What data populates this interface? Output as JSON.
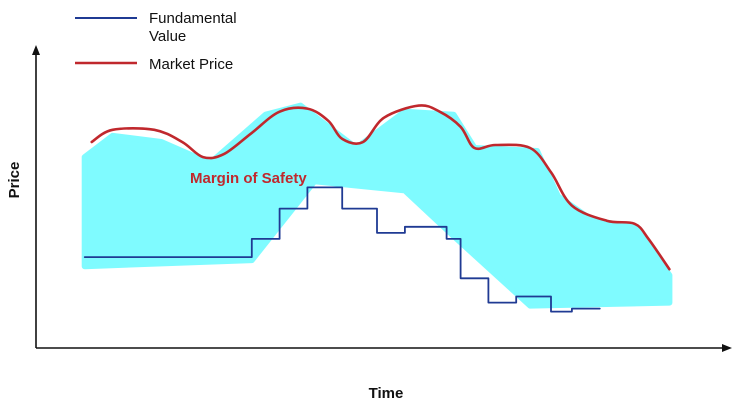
{
  "chart_data": {
    "type": "line",
    "xlabel": "Time",
    "ylabel": "Price",
    "annotation": "Margin of Safety",
    "legend": {
      "placement": "top-left",
      "items": [
        {
          "key": "fundamental",
          "label_lines": [
            "Fundamental",
            "Value"
          ],
          "color": "#1f3a93"
        },
        {
          "key": "market",
          "label_lines": [
            "Market Price"
          ],
          "color": "#c0282d"
        }
      ]
    },
    "colors": {
      "margin_fill": "#7ffbff",
      "axis": "#111111",
      "annotation": "#c0282d"
    },
    "series": [
      {
        "name": "Fundamental Value",
        "style": "step",
        "points": [
          [
            0.07,
            0.3
          ],
          [
            0.31,
            0.3
          ],
          [
            0.31,
            0.36
          ],
          [
            0.35,
            0.36
          ],
          [
            0.35,
            0.46
          ],
          [
            0.39,
            0.46
          ],
          [
            0.39,
            0.53
          ],
          [
            0.44,
            0.53
          ],
          [
            0.44,
            0.46
          ],
          [
            0.49,
            0.46
          ],
          [
            0.49,
            0.38
          ],
          [
            0.53,
            0.38
          ],
          [
            0.53,
            0.4
          ],
          [
            0.59,
            0.4
          ],
          [
            0.59,
            0.36
          ],
          [
            0.61,
            0.36
          ],
          [
            0.61,
            0.23
          ],
          [
            0.65,
            0.23
          ],
          [
            0.65,
            0.15
          ],
          [
            0.69,
            0.15
          ],
          [
            0.69,
            0.17
          ],
          [
            0.74,
            0.17
          ],
          [
            0.74,
            0.12
          ],
          [
            0.77,
            0.12
          ],
          [
            0.77,
            0.13
          ],
          [
            0.81,
            0.13
          ]
        ]
      },
      {
        "name": "Market Price",
        "style": "smooth",
        "points": [
          [
            0.08,
            0.68
          ],
          [
            0.11,
            0.72
          ],
          [
            0.17,
            0.72
          ],
          [
            0.21,
            0.68
          ],
          [
            0.24,
            0.63
          ],
          [
            0.27,
            0.64
          ],
          [
            0.31,
            0.71
          ],
          [
            0.35,
            0.78
          ],
          [
            0.39,
            0.79
          ],
          [
            0.42,
            0.75
          ],
          [
            0.44,
            0.69
          ],
          [
            0.47,
            0.68
          ],
          [
            0.5,
            0.76
          ],
          [
            0.55,
            0.8
          ],
          [
            0.58,
            0.78
          ],
          [
            0.61,
            0.73
          ],
          [
            0.63,
            0.66
          ],
          [
            0.66,
            0.67
          ],
          [
            0.71,
            0.66
          ],
          [
            0.74,
            0.58
          ],
          [
            0.77,
            0.47
          ],
          [
            0.82,
            0.42
          ],
          [
            0.86,
            0.41
          ],
          [
            0.88,
            0.36
          ],
          [
            0.91,
            0.26
          ]
        ]
      }
    ],
    "margin_region": [
      [
        0.07,
        0.27
      ],
      [
        0.31,
        0.29
      ],
      [
        0.4,
        0.55
      ],
      [
        0.53,
        0.52
      ],
      [
        0.6,
        0.37
      ],
      [
        0.71,
        0.14
      ],
      [
        0.91,
        0.15
      ],
      [
        0.91,
        0.24
      ],
      [
        0.86,
        0.4
      ],
      [
        0.8,
        0.42
      ],
      [
        0.75,
        0.5
      ],
      [
        0.72,
        0.65
      ],
      [
        0.63,
        0.66
      ],
      [
        0.6,
        0.77
      ],
      [
        0.53,
        0.78
      ],
      [
        0.46,
        0.66
      ],
      [
        0.38,
        0.8
      ],
      [
        0.33,
        0.77
      ],
      [
        0.25,
        0.61
      ],
      [
        0.18,
        0.68
      ],
      [
        0.11,
        0.7
      ],
      [
        0.07,
        0.63
      ]
    ],
    "xlim": [
      0,
      1
    ],
    "ylim": [
      0,
      1
    ],
    "grid": false
  }
}
